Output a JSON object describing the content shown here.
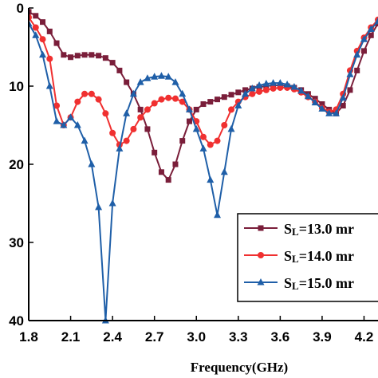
{
  "chart_data": {
    "type": "line",
    "title": "",
    "xlabel": "Frequency(GHz)",
    "ylabel": "",
    "xlim": [
      1.8,
      4.3
    ],
    "ylim": [
      0,
      -40
    ],
    "x_ticks": [
      "1.8",
      "2.1",
      "2.4",
      "2.7",
      "3.0",
      "3.3",
      "3.6",
      "3.9",
      "4.2"
    ],
    "y_ticks": [
      "0",
      "10",
      "20",
      "30",
      "40"
    ],
    "legend_placement": "bottom-right",
    "series": [
      {
        "name": "SL=13.0 mm",
        "legend_parts": {
          "s": "S",
          "sub": "L",
          "rest": "=13.0 mr"
        },
        "color": "#7a1e3a",
        "marker": "square",
        "points": [
          [
            1.8,
            -0.5
          ],
          [
            1.85,
            -1
          ],
          [
            1.9,
            -1.8
          ],
          [
            1.95,
            -3
          ],
          [
            2.0,
            -4.5
          ],
          [
            2.05,
            -6
          ],
          [
            2.1,
            -6.3
          ],
          [
            2.15,
            -6.1
          ],
          [
            2.2,
            -6
          ],
          [
            2.25,
            -6
          ],
          [
            2.3,
            -6.1
          ],
          [
            2.35,
            -6.4
          ],
          [
            2.4,
            -7
          ],
          [
            2.45,
            -8
          ],
          [
            2.5,
            -9.5
          ],
          [
            2.55,
            -11
          ],
          [
            2.6,
            -13
          ],
          [
            2.65,
            -15.5
          ],
          [
            2.7,
            -18.5
          ],
          [
            2.75,
            -21
          ],
          [
            2.8,
            -22
          ],
          [
            2.85,
            -20
          ],
          [
            2.9,
            -17
          ],
          [
            2.95,
            -14.5
          ],
          [
            3.0,
            -13
          ],
          [
            3.05,
            -12.3
          ],
          [
            3.1,
            -12
          ],
          [
            3.15,
            -11.7
          ],
          [
            3.2,
            -11.4
          ],
          [
            3.25,
            -11.1
          ],
          [
            3.3,
            -10.8
          ],
          [
            3.35,
            -10.5
          ],
          [
            3.4,
            -10.3
          ],
          [
            3.45,
            -10.1
          ],
          [
            3.5,
            -10
          ],
          [
            3.55,
            -9.9
          ],
          [
            3.6,
            -9.9
          ],
          [
            3.65,
            -10
          ],
          [
            3.7,
            -10.2
          ],
          [
            3.75,
            -10.5
          ],
          [
            3.8,
            -11
          ],
          [
            3.85,
            -11.6
          ],
          [
            3.9,
            -12.3
          ],
          [
            3.95,
            -13
          ],
          [
            4.0,
            -13.5
          ],
          [
            4.05,
            -12.5
          ],
          [
            4.1,
            -10.5
          ],
          [
            4.15,
            -8
          ],
          [
            4.2,
            -5.5
          ],
          [
            4.25,
            -3.5
          ],
          [
            4.3,
            -2
          ]
        ]
      },
      {
        "name": "SL=14.0 mm",
        "legend_parts": {
          "s": "S",
          "sub": "L",
          "rest": "=14.0 mr"
        },
        "color": "#f03030",
        "marker": "circle",
        "points": [
          [
            1.8,
            -1.2
          ],
          [
            1.85,
            -2.5
          ],
          [
            1.9,
            -4
          ],
          [
            1.95,
            -6.5
          ],
          [
            2.0,
            -12.5
          ],
          [
            2.05,
            -15
          ],
          [
            2.1,
            -14
          ],
          [
            2.15,
            -12
          ],
          [
            2.2,
            -11
          ],
          [
            2.25,
            -11
          ],
          [
            2.3,
            -11.7
          ],
          [
            2.35,
            -13.5
          ],
          [
            2.4,
            -16
          ],
          [
            2.45,
            -17.5
          ],
          [
            2.5,
            -17
          ],
          [
            2.55,
            -15.5
          ],
          [
            2.6,
            -14
          ],
          [
            2.65,
            -13
          ],
          [
            2.7,
            -12.2
          ],
          [
            2.75,
            -11.7
          ],
          [
            2.8,
            -11.5
          ],
          [
            2.85,
            -11.6
          ],
          [
            2.9,
            -12
          ],
          [
            2.95,
            -13
          ],
          [
            3.0,
            -14.5
          ],
          [
            3.05,
            -16.5
          ],
          [
            3.1,
            -17.5
          ],
          [
            3.15,
            -17
          ],
          [
            3.2,
            -15
          ],
          [
            3.25,
            -13
          ],
          [
            3.3,
            -12
          ],
          [
            3.35,
            -11.4
          ],
          [
            3.4,
            -11
          ],
          [
            3.45,
            -10.7
          ],
          [
            3.5,
            -10.5
          ],
          [
            3.55,
            -10.3
          ],
          [
            3.6,
            -10.2
          ],
          [
            3.65,
            -10.2
          ],
          [
            3.7,
            -10.4
          ],
          [
            3.75,
            -10.8
          ],
          [
            3.8,
            -11.4
          ],
          [
            3.85,
            -12
          ],
          [
            3.9,
            -12.8
          ],
          [
            3.95,
            -13.3
          ],
          [
            4.0,
            -13
          ],
          [
            4.05,
            -11
          ],
          [
            4.1,
            -8
          ],
          [
            4.15,
            -5.5
          ],
          [
            4.2,
            -3.8
          ],
          [
            4.25,
            -2.5
          ],
          [
            4.3,
            -1.5
          ]
        ]
      },
      {
        "name": "SL=15.0 mm",
        "legend_parts": {
          "s": "S",
          "sub": "L",
          "rest": "=15.0 mr"
        },
        "color": "#1f5fa8",
        "marker": "triangle",
        "points": [
          [
            1.8,
            -2
          ],
          [
            1.85,
            -3.5
          ],
          [
            1.9,
            -6
          ],
          [
            1.95,
            -10
          ],
          [
            2.0,
            -14.5
          ],
          [
            2.05,
            -15
          ],
          [
            2.1,
            -14
          ],
          [
            2.15,
            -15
          ],
          [
            2.2,
            -17
          ],
          [
            2.25,
            -20
          ],
          [
            2.3,
            -25.5
          ],
          [
            2.35,
            -40
          ],
          [
            2.4,
            -25
          ],
          [
            2.45,
            -18
          ],
          [
            2.5,
            -13.5
          ],
          [
            2.55,
            -11
          ],
          [
            2.6,
            -9.5
          ],
          [
            2.65,
            -9
          ],
          [
            2.7,
            -8.8
          ],
          [
            2.75,
            -8.7
          ],
          [
            2.8,
            -8.8
          ],
          [
            2.85,
            -9.5
          ],
          [
            2.9,
            -11
          ],
          [
            2.95,
            -13
          ],
          [
            3.0,
            -15.5
          ],
          [
            3.05,
            -18
          ],
          [
            3.1,
            -22
          ],
          [
            3.15,
            -26.5
          ],
          [
            3.2,
            -21
          ],
          [
            3.25,
            -15.5
          ],
          [
            3.3,
            -12.5
          ],
          [
            3.35,
            -11
          ],
          [
            3.4,
            -10.3
          ],
          [
            3.45,
            -9.9
          ],
          [
            3.5,
            -9.7
          ],
          [
            3.55,
            -9.6
          ],
          [
            3.6,
            -9.6
          ],
          [
            3.65,
            -9.8
          ],
          [
            3.7,
            -10.1
          ],
          [
            3.75,
            -10.6
          ],
          [
            3.8,
            -11.3
          ],
          [
            3.85,
            -12.1
          ],
          [
            3.9,
            -12.9
          ],
          [
            3.95,
            -13.5
          ],
          [
            4.0,
            -13.5
          ],
          [
            4.05,
            -11.5
          ],
          [
            4.1,
            -8.5
          ],
          [
            4.15,
            -6
          ],
          [
            4.2,
            -4
          ],
          [
            4.25,
            -2.7
          ],
          [
            4.3,
            -1.7
          ]
        ]
      }
    ]
  }
}
